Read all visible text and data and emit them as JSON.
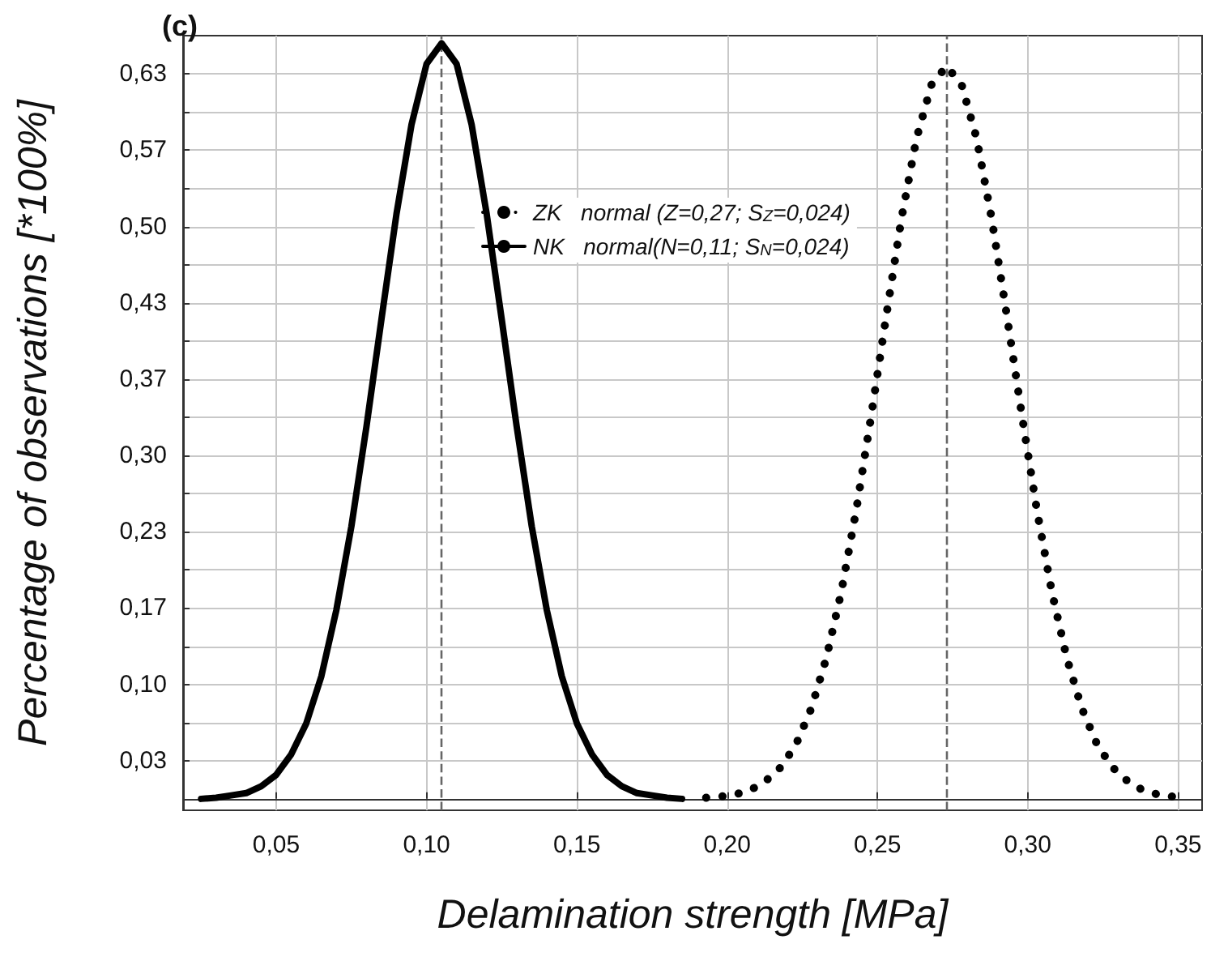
{
  "chart_data": {
    "type": "line",
    "title": "(c)",
    "xlabel": "Delamination strength [MPa]",
    "ylabel": "Percentage of observations [*100%]",
    "series": [
      {
        "name": "ZK   normal (Z=0,27; S$_{Z}$=0,024)",
        "color": "#000000",
        "line_style": "dotted",
        "x": [
          0.193,
          0.198,
          0.203,
          0.208,
          0.213,
          0.218,
          0.223,
          0.228,
          0.233,
          0.238,
          0.243,
          0.248,
          0.253,
          0.258,
          0.263,
          0.268,
          0.273,
          0.278,
          0.283,
          0.288,
          0.293,
          0.298,
          0.303,
          0.308,
          0.313,
          0.318,
          0.323,
          0.328,
          0.333,
          0.338,
          0.343,
          0.348,
          0.353
        ],
        "values": [
          0.001,
          0.002,
          0.004,
          0.008,
          0.016,
          0.028,
          0.048,
          0.079,
          0.123,
          0.181,
          0.253,
          0.336,
          0.423,
          0.507,
          0.577,
          0.624,
          0.64,
          0.624,
          0.577,
          0.507,
          0.423,
          0.336,
          0.253,
          0.181,
          0.123,
          0.079,
          0.048,
          0.028,
          0.016,
          0.008,
          0.004,
          0.002,
          0.001
        ]
      },
      {
        "name": "NK   normal(N=0,11; S$_{N}$=0,024)",
        "color": "#000000",
        "line_style": "solid",
        "x": [
          0.025,
          0.03,
          0.035,
          0.04,
          0.045,
          0.05,
          0.055,
          0.06,
          0.065,
          0.07,
          0.075,
          0.08,
          0.085,
          0.09,
          0.095,
          0.1,
          0.105,
          0.11,
          0.115,
          0.12,
          0.125,
          0.13,
          0.135,
          0.14,
          0.145,
          0.15,
          0.155,
          0.16,
          0.165,
          0.17,
          0.175,
          0.18,
          0.185
        ],
        "values": [
          0.0,
          0.001,
          0.003,
          0.005,
          0.011,
          0.021,
          0.039,
          0.066,
          0.107,
          0.165,
          0.238,
          0.325,
          0.419,
          0.511,
          0.589,
          0.642,
          0.66,
          0.642,
          0.589,
          0.511,
          0.419,
          0.325,
          0.238,
          0.165,
          0.107,
          0.066,
          0.039,
          0.021,
          0.011,
          0.005,
          0.003,
          0.001,
          0.0
        ]
      }
    ],
    "ref_lines": [
      {
        "axis": "x",
        "value": 0.105,
        "color": "#666666",
        "line_style": "dashed"
      },
      {
        "axis": "x",
        "value": 0.273,
        "color": "#666666",
        "line_style": "dashed"
      }
    ],
    "xlim": [
      0.019,
      0.358
    ],
    "xticks": [
      {
        "value": 0.05,
        "label": "0,05"
      },
      {
        "value": 0.1,
        "label": "0,10"
      },
      {
        "value": 0.15,
        "label": "0,15"
      },
      {
        "value": 0.2,
        "label": "0,20"
      },
      {
        "value": 0.25,
        "label": "0,25"
      },
      {
        "value": 0.3,
        "label": "0,30"
      },
      {
        "value": 0.35,
        "label": "0,35"
      }
    ],
    "ylim": [
      -0.01,
      0.6667
    ],
    "yticks": [
      {
        "value": 0.0333,
        "label": "0,03"
      },
      {
        "value": 0.0667,
        "label": null
      },
      {
        "value": 0.1,
        "label": "0,10"
      },
      {
        "value": 0.1333,
        "label": null
      },
      {
        "value": 0.1667,
        "label": "0,17"
      },
      {
        "value": 0.2,
        "label": null
      },
      {
        "value": 0.2333,
        "label": "0,23"
      },
      {
        "value": 0.2667,
        "label": null
      },
      {
        "value": 0.3,
        "label": "0,30"
      },
      {
        "value": 0.3333,
        "label": null
      },
      {
        "value": 0.3667,
        "label": "0,37"
      },
      {
        "value": 0.4,
        "label": null
      },
      {
        "value": 0.4333,
        "label": "0,43"
      },
      {
        "value": 0.4667,
        "label": null
      },
      {
        "value": 0.5,
        "label": "0,50"
      },
      {
        "value": 0.5333,
        "label": null
      },
      {
        "value": 0.5667,
        "label": "0,57"
      },
      {
        "value": 0.6,
        "label": null
      },
      {
        "value": 0.6333,
        "label": "0,63"
      }
    ],
    "grid": true,
    "legend": "top",
    "marker": "none"
  }
}
